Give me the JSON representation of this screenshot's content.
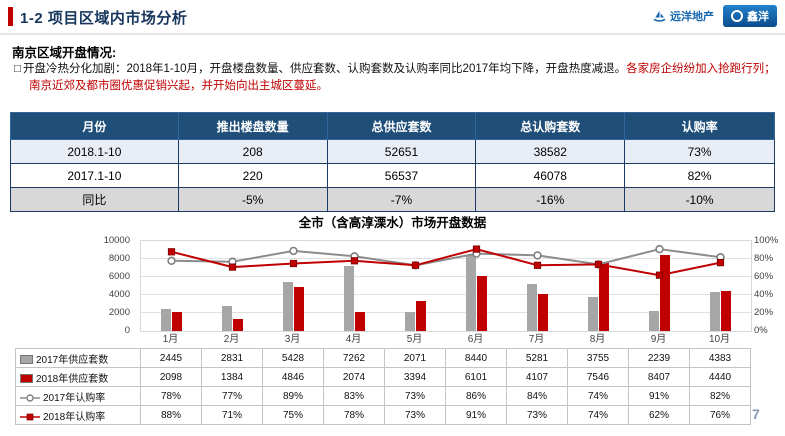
{
  "header": {
    "title": "1-2 项目区域内市场分析",
    "accent_color": "#C00000",
    "logo_primary": "远洋地产",
    "logo_secondary": "鑫洋"
  },
  "section": {
    "heading": "南京区域开盘情况:",
    "bullet_glyph": "□",
    "note_black": "开盘冷热分化加剧：2018年1-10月，开盘楼盘数量、供应套数、认购套数及认购率同比2017年均下降，开盘热度减退。",
    "note_red": "各家房企纷纷加入抢跑行列；南京近郊及都市圈优惠促销兴起，并开始向出主城区蔓延。"
  },
  "stats_table": {
    "header_bg": "#1F4E79",
    "headers": [
      "月份",
      "推出楼盘数量",
      "总供应套数",
      "总认购套数",
      "认购率"
    ],
    "rows": [
      {
        "cells": [
          "2018.1-10",
          "208",
          "52651",
          "38582",
          "73%"
        ],
        "bg": "#E9EEF6"
      },
      {
        "cells": [
          "2017.1-10",
          "220",
          "56537",
          "46078",
          "82%"
        ],
        "bg": "#FFFFFF"
      },
      {
        "cells": [
          "同比",
          "-5%",
          "-7%",
          "-16%",
          "-10%"
        ],
        "bg": "#D8D8D8"
      }
    ]
  },
  "chart_data": {
    "type": "combo-bar-line",
    "title": "全市（含高淳溧水）市场开盘数据",
    "categories": [
      "1月",
      "2月",
      "3月",
      "4月",
      "5月",
      "6月",
      "7月",
      "8月",
      "9月",
      "10月"
    ],
    "series": [
      {
        "name": "2017年供应套数",
        "type": "bar",
        "axis": "left",
        "color": "#A6A6A6",
        "values": [
          2445,
          2831,
          5428,
          7262,
          2071,
          8440,
          5281,
          3755,
          2239,
          4383
        ]
      },
      {
        "name": "2018年供应套数",
        "type": "bar",
        "axis": "left",
        "color": "#C00000",
        "values": [
          2098,
          1384,
          4846,
          2074,
          3394,
          6101,
          4107,
          7546,
          8407,
          4440
        ]
      },
      {
        "name": "2017年认购率",
        "type": "line",
        "axis": "right",
        "color": "#8C8C8C",
        "marker": "circle",
        "unit": "%",
        "values": [
          78,
          77,
          89,
          83,
          73,
          86,
          84,
          74,
          91,
          82
        ]
      },
      {
        "name": "2018年认购率",
        "type": "line",
        "axis": "right",
        "color": "#C00000",
        "marker": "square",
        "unit": "%",
        "values": [
          88,
          71,
          75,
          78,
          73,
          91,
          73,
          74,
          62,
          76
        ]
      }
    ],
    "left_axis": {
      "min": 0,
      "max": 10000,
      "step": 2000,
      "ticks": [
        "0",
        "2000",
        "4000",
        "6000",
        "8000",
        "10000"
      ]
    },
    "right_axis": {
      "min": 0,
      "max": 100,
      "step": 20,
      "ticks": [
        "0%",
        "20%",
        "40%",
        "60%",
        "80%",
        "100%"
      ]
    },
    "grid": true,
    "legend": "in-data-table",
    "data_table": true
  },
  "page_number": "7"
}
